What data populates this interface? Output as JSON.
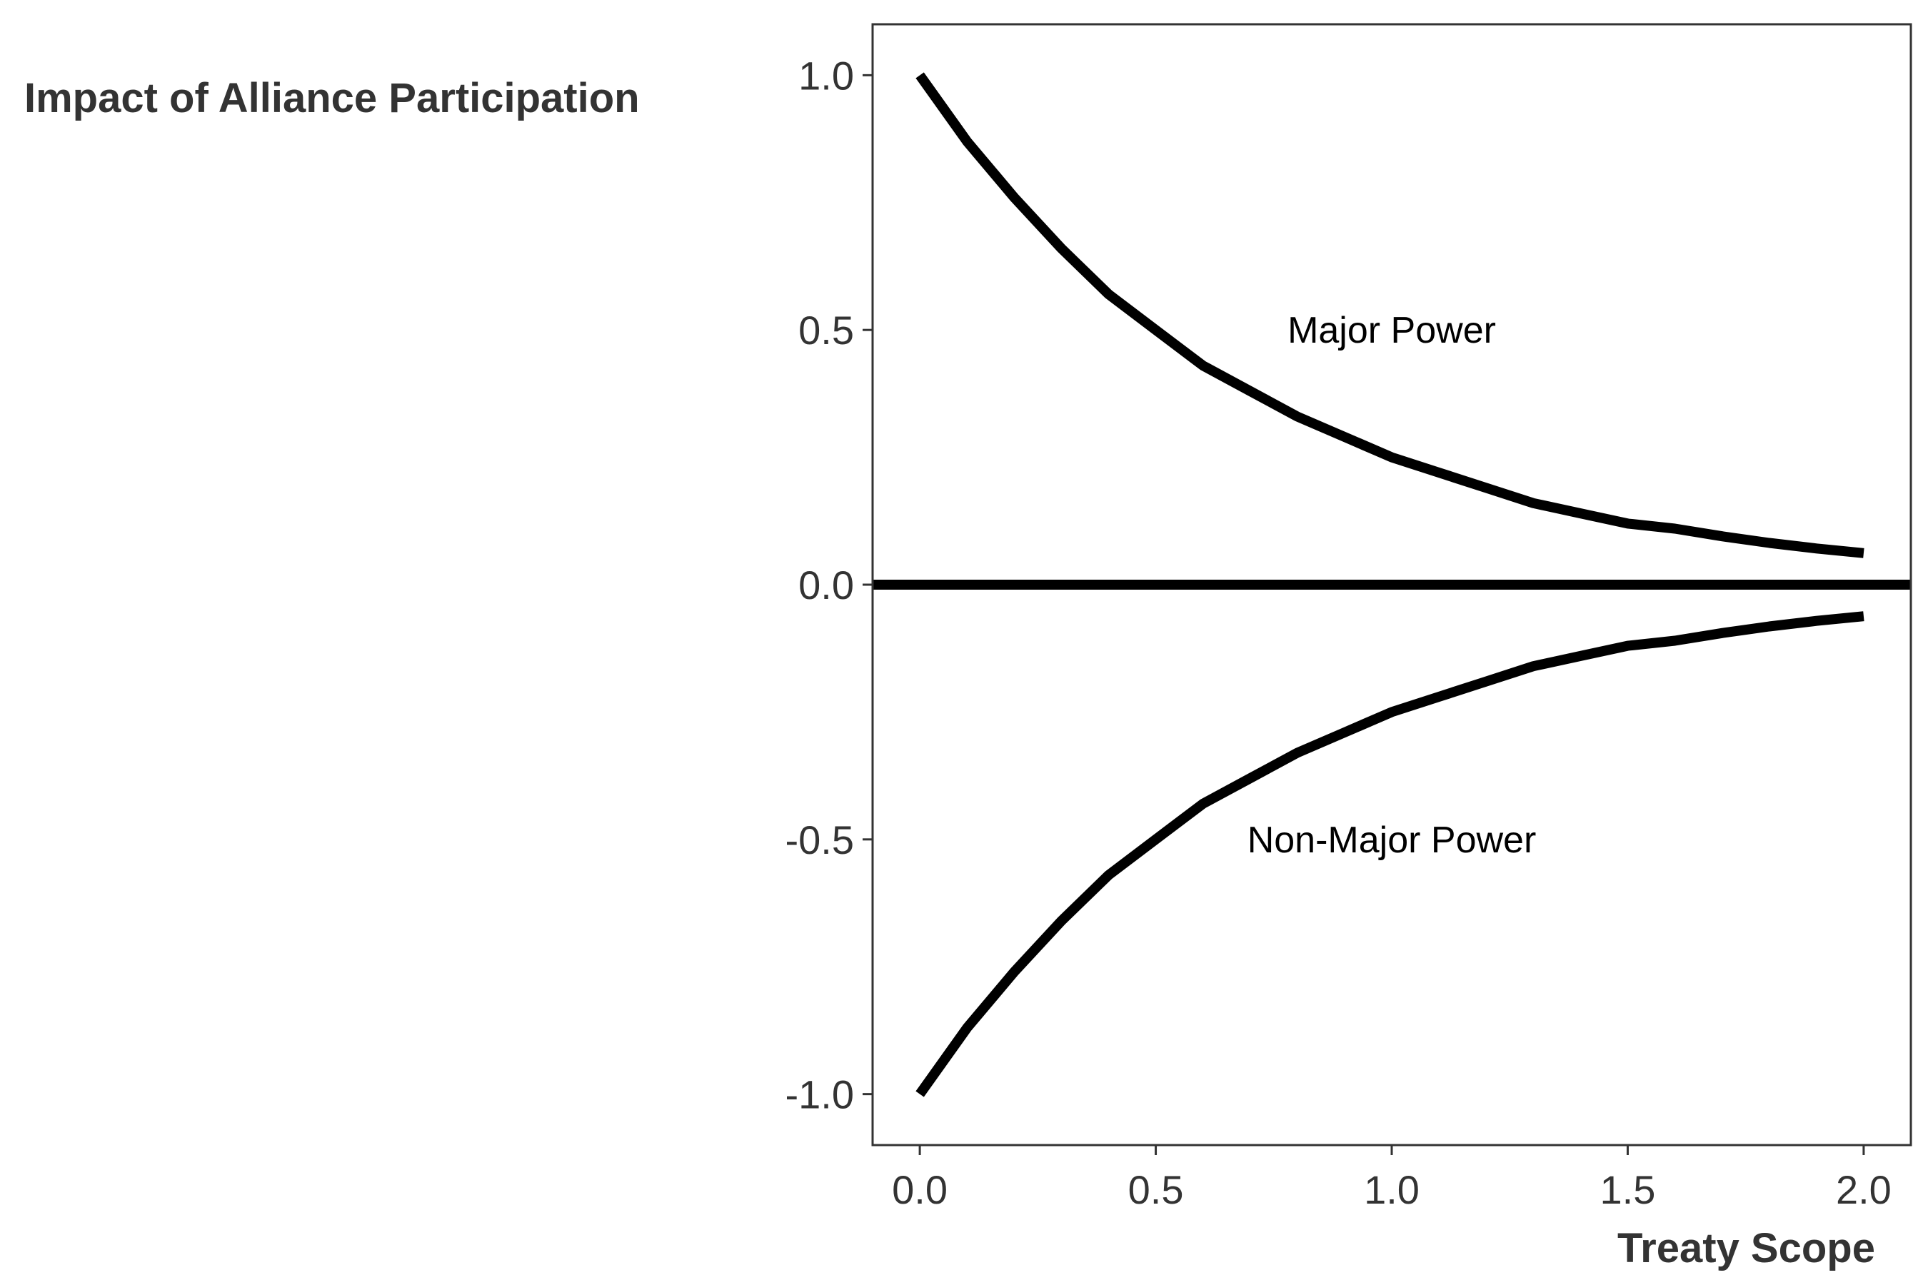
{
  "chart_data": {
    "type": "line",
    "title": "",
    "xlabel": "Treaty Scope",
    "ylabel": "Impact of Alliance Participation",
    "xlim": [
      -0.1,
      2.1
    ],
    "ylim": [
      -1.1,
      1.1
    ],
    "x_ticks": [
      0.0,
      0.5,
      1.0,
      1.5,
      2.0
    ],
    "x_tick_labels": [
      "0.0",
      "0.5",
      "1.0",
      "1.5",
      "2.0"
    ],
    "y_ticks": [
      -1.0,
      -0.5,
      0.0,
      0.5,
      1.0
    ],
    "y_tick_labels": [
      "-1.0",
      "-0.5",
      "0.0",
      "0.5",
      "1.0"
    ],
    "grid": false,
    "reference_line": {
      "y": 0.0,
      "color": "#000000"
    },
    "series": [
      {
        "color": "#000000",
        "x": [
          0.0,
          0.1,
          0.2,
          0.3,
          0.4,
          0.5,
          0.6,
          0.7,
          0.8,
          0.9,
          1.0,
          1.1,
          1.2,
          1.3,
          1.4,
          1.5,
          1.6,
          1.7,
          1.8,
          1.9,
          2.0
        ],
        "y": [
          1.0,
          0.87,
          0.76,
          0.66,
          0.57,
          0.5,
          0.43,
          0.38,
          0.33,
          0.29,
          0.25,
          0.22,
          0.19,
          0.16,
          0.14,
          0.12,
          0.11,
          0.095,
          0.082,
          0.071,
          0.062
        ]
      },
      {
        "color": "#000000",
        "x": [
          0.0,
          0.1,
          0.2,
          0.3,
          0.4,
          0.5,
          0.6,
          0.7,
          0.8,
          0.9,
          1.0,
          1.1,
          1.2,
          1.3,
          1.4,
          1.5,
          1.6,
          1.7,
          1.8,
          1.9,
          2.0
        ],
        "y": [
          -1.0,
          -0.87,
          -0.76,
          -0.66,
          -0.57,
          -0.5,
          -0.43,
          -0.38,
          -0.33,
          -0.29,
          -0.25,
          -0.22,
          -0.19,
          -0.16,
          -0.14,
          -0.12,
          -0.11,
          -0.095,
          -0.082,
          -0.071,
          -0.062
        ]
      }
    ],
    "annotations": [
      {
        "text": "Major Power",
        "x": 1.0,
        "y": 0.5
      },
      {
        "text": "Non-Major Power",
        "x": 1.0,
        "y": -0.5
      }
    ]
  }
}
